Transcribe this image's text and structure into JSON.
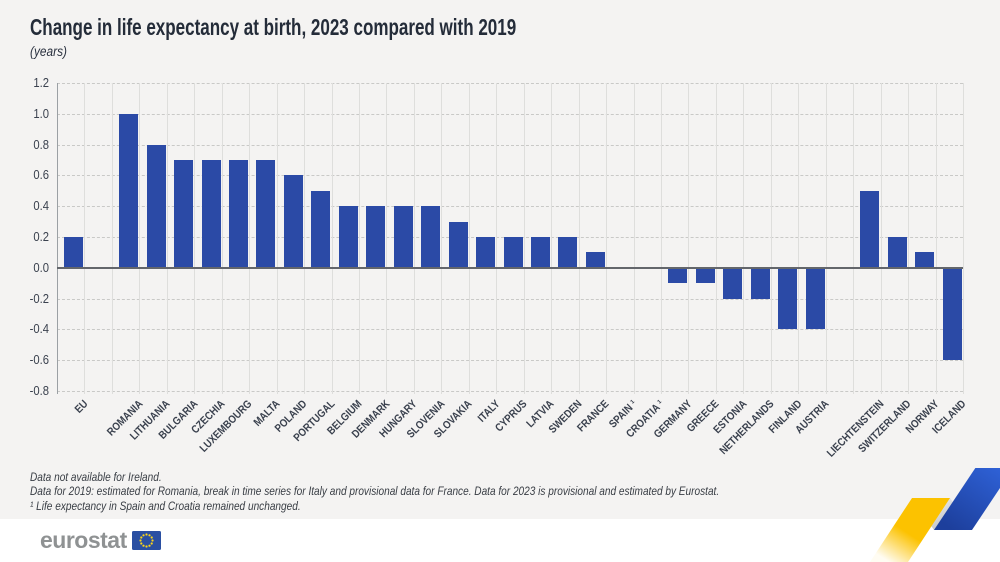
{
  "header": {
    "title": "Change in life expectancy at birth, 2023 compared with 2019",
    "subtitle": "(years)"
  },
  "chart_data": {
    "type": "bar",
    "title": "Change in life expectancy at birth, 2023 compared with 2019",
    "unit_label": "(years)",
    "xlabel": "",
    "ylabel": "",
    "ylim": [
      -0.8,
      1.2
    ],
    "ytick_labels": [
      "1.2",
      "1.0",
      "0.8",
      "0.6",
      "0.4",
      "0.2",
      "0.0",
      "-0.2",
      "-0.4",
      "-0.6",
      "-0.8"
    ],
    "grid": true,
    "legend": false,
    "bar_color": "#2b4aa6",
    "categories": [
      "EU",
      "ROMANIA",
      "LITHUANIA",
      "BULGARIA",
      "CZECHIA",
      "LUXEMBOURG",
      "MALTA",
      "POLAND",
      "PORTUGAL",
      "BELGIUM",
      "DENMARK",
      "HUNGARY",
      "SLOVENIA",
      "SLOVAKIA",
      "ITALY",
      "CYPRUS",
      "LATVIA",
      "SWEDEN",
      "FRANCE",
      "SPAIN ¹",
      "CROATIA ¹",
      "GERMANY",
      "GREECE",
      "ESTONIA",
      "NETHERLANDS",
      "FINLAND",
      "AUSTRIA",
      "LIECHTENSTEIN",
      "SWITZERLAND",
      "NORWAY",
      "ICELAND"
    ],
    "values": [
      0.2,
      1.0,
      0.8,
      0.7,
      0.7,
      0.7,
      0.7,
      0.6,
      0.5,
      0.4,
      0.4,
      0.4,
      0.4,
      0.3,
      0.2,
      0.2,
      0.2,
      0.2,
      0.1,
      0,
      0,
      -0.1,
      -0.1,
      -0.2,
      -0.2,
      -0.4,
      -0.4,
      0.5,
      0.2,
      0.1,
      -0.6
    ],
    "gap_after_indices": [
      0,
      26
    ]
  },
  "footnotes": {
    "lines": [
      "Data not available for Ireland.",
      "Data for 2019: estimated for Romania, break in time series for Italy and provisional data for France. Data for 2023 is provisional and estimated by Eurostat.",
      "¹ Life expectancy in Spain and Croatia remained unchanged."
    ]
  },
  "footer": {
    "brand": "eurostat"
  },
  "colors": {
    "page_background": "#f4f3f2",
    "footer_background": "#ffffff",
    "bar": "#2b4aa6",
    "zero_line": "#63666b",
    "gridline": "#c9c9c7",
    "ribbon_yellow": "#fcc200",
    "ribbon_gray": "#bcbfc3",
    "ribbon_blue": "#2455c4",
    "flag_blue": "#2a4fa2",
    "flag_stars": "#ffd617",
    "logo_text": "#8f9293"
  }
}
